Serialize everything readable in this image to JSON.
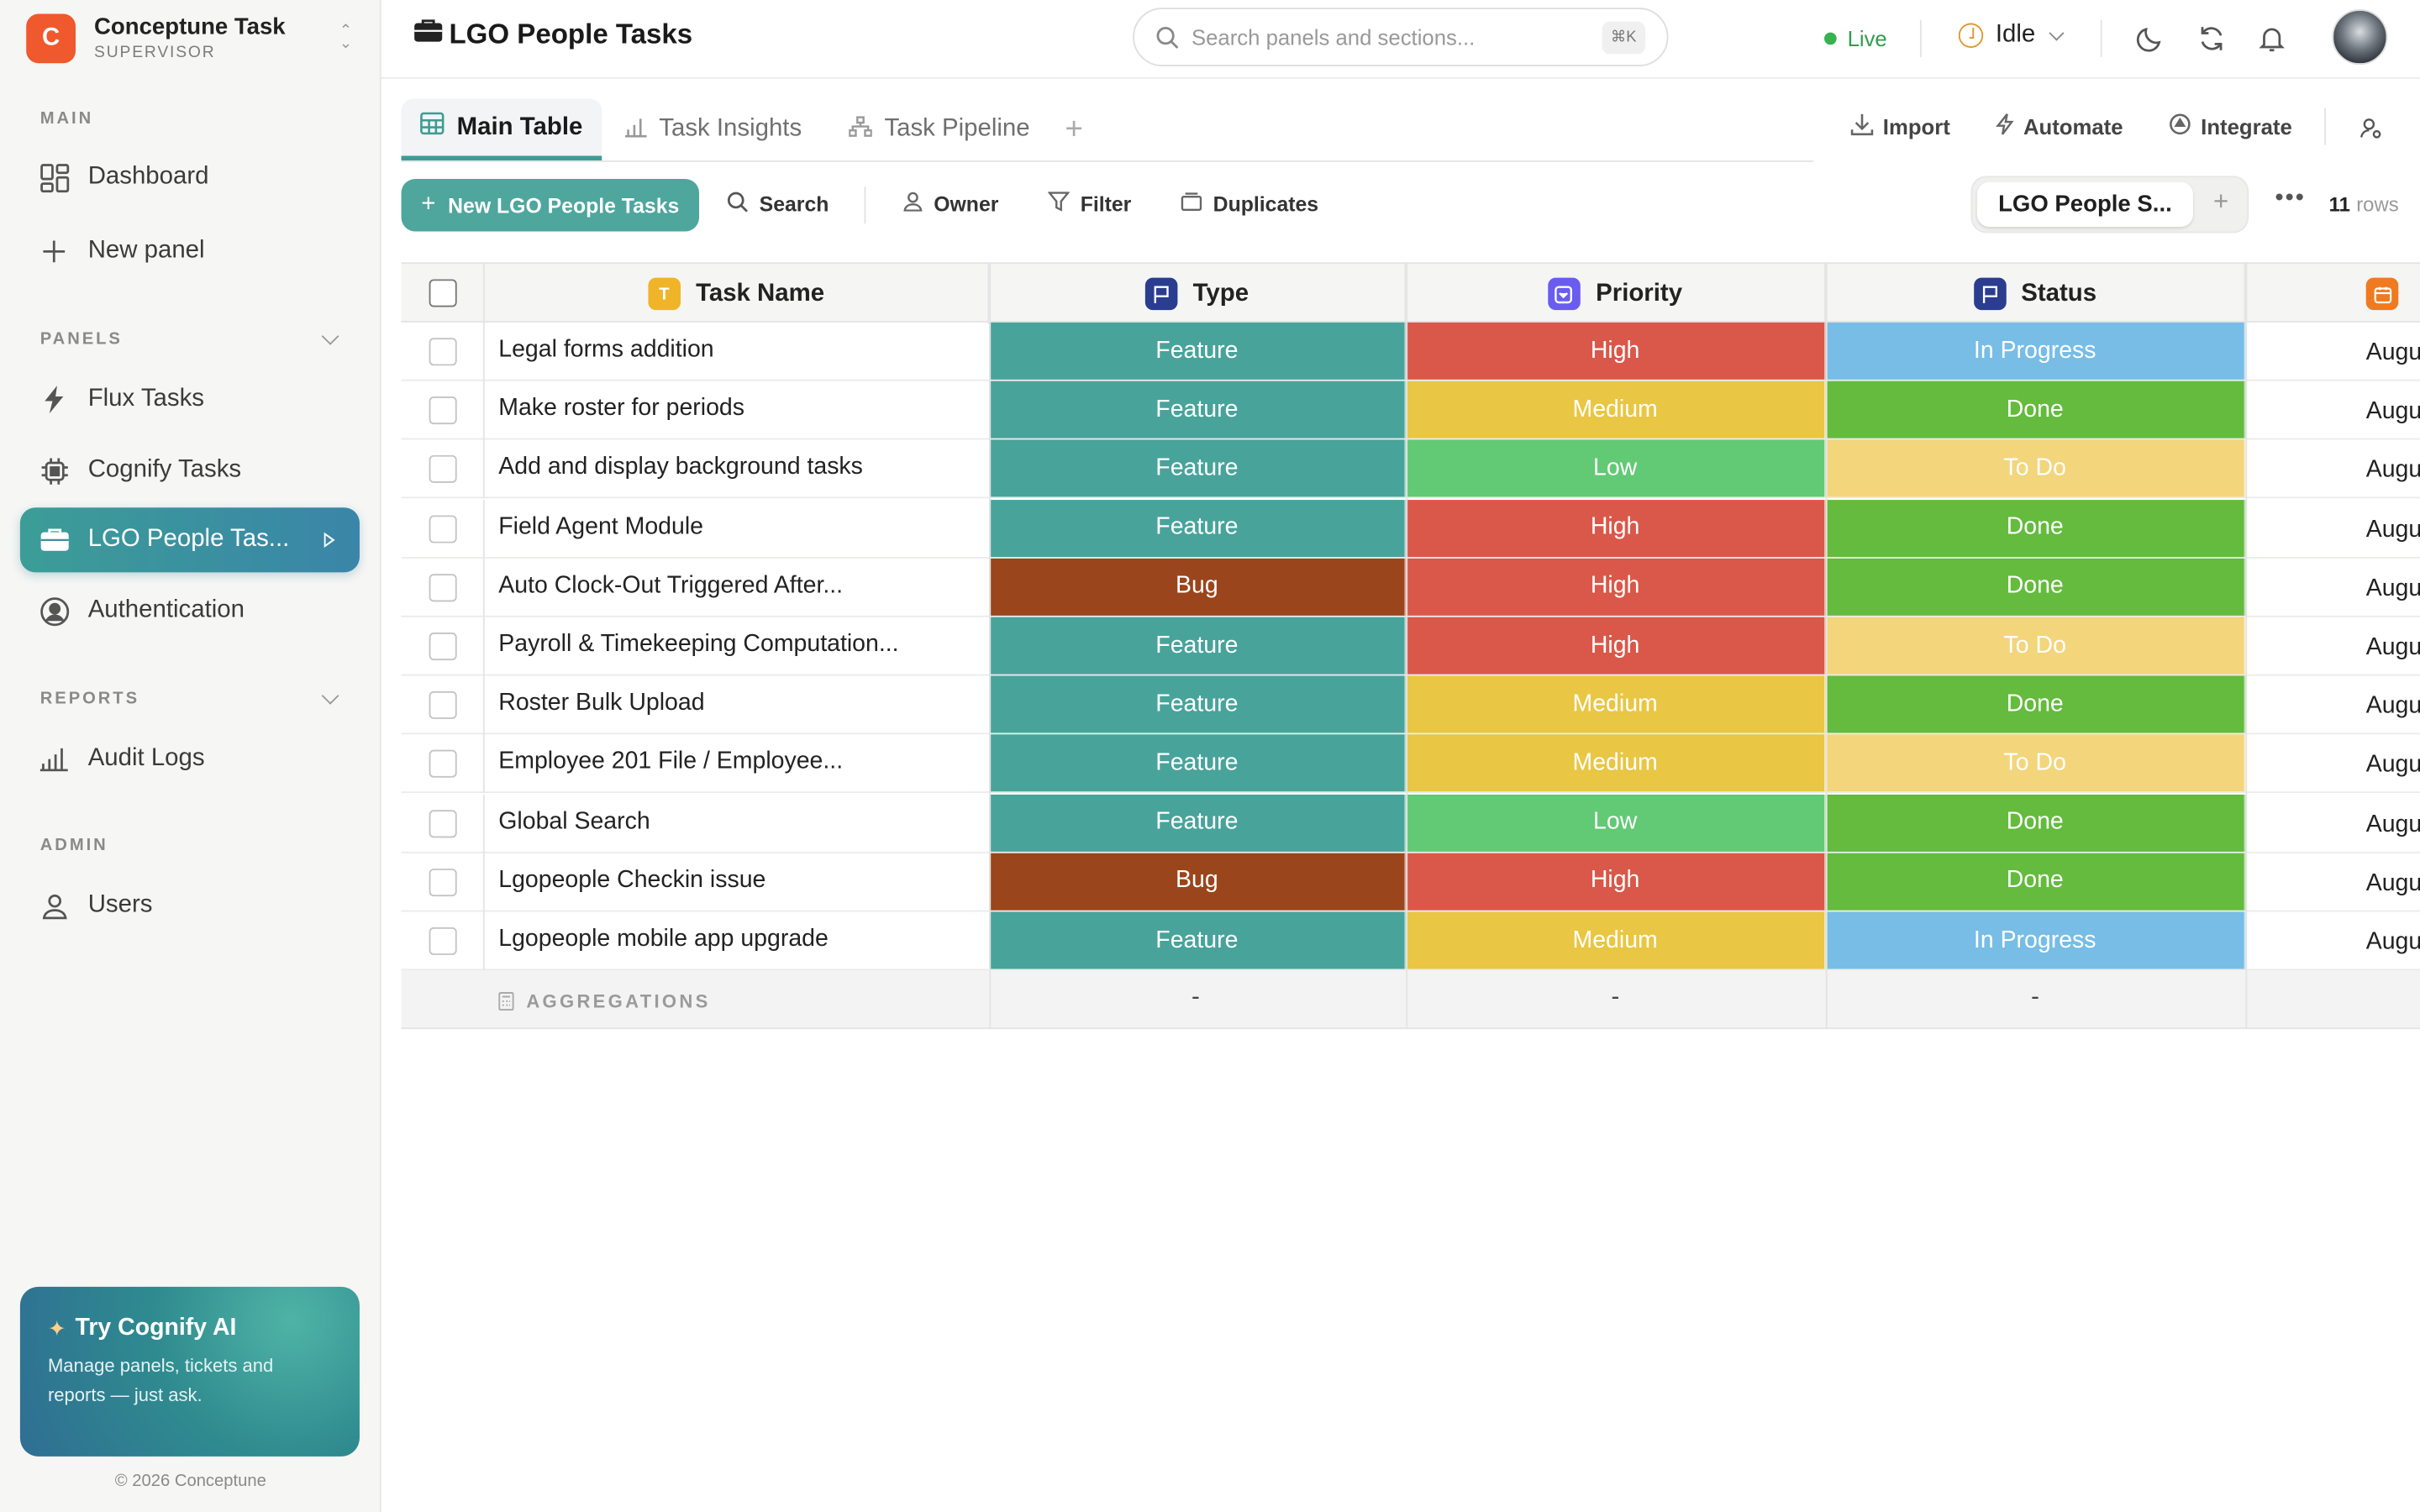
{
  "app": {
    "name": "Conceptune Task",
    "role": "SUPERVISOR",
    "logo_letter": "C"
  },
  "sidebar": {
    "sections": {
      "main": "MAIN",
      "panels": "PANELS",
      "reports": "REPORTS",
      "admin": "ADMIN"
    },
    "items": [
      {
        "label": "Dashboard",
        "icon": "dashboard-icon"
      },
      {
        "label": "New panel",
        "icon": "plus-icon"
      },
      {
        "label": "Flux Tasks",
        "icon": "bolt-icon"
      },
      {
        "label": "Cognify Tasks",
        "icon": "chip-icon"
      },
      {
        "label": "LGO People Tas...",
        "icon": "briefcase-icon",
        "active": true
      },
      {
        "label": "Authentication",
        "icon": "user-circle-icon"
      },
      {
        "label": "Audit Logs",
        "icon": "bar-chart-icon"
      },
      {
        "label": "Users",
        "icon": "user-icon"
      }
    ],
    "ai_card": {
      "title": "Try Cognify AI",
      "description": "Manage panels, tickets and reports — just ask."
    },
    "copyright": "© 2026 Conceptune"
  },
  "header": {
    "title": "LGO People Tasks",
    "search_placeholder": "Search panels and sections...",
    "search_shortcut": "⌘K",
    "live_label": "Live",
    "status": "Idle"
  },
  "tabs": [
    {
      "label": "Main Table",
      "icon": "table-icon"
    },
    {
      "label": "Task Insights",
      "icon": "bar-chart-icon"
    },
    {
      "label": "Task Pipeline",
      "icon": "pipeline-icon"
    }
  ],
  "tab_actions": {
    "import": "Import",
    "automate": "Automate",
    "integrate": "Integrate"
  },
  "toolbar": {
    "new_button": "New LGO People Tasks",
    "search": "Search",
    "owner": "Owner",
    "filter": "Filter",
    "duplicates": "Duplicates",
    "view_name": "LGO People S...",
    "row_count": "11",
    "row_suffix": "rows"
  },
  "table": {
    "columns": [
      "Task Name",
      "Type",
      "Priority",
      "Status"
    ],
    "column_icon_letter": "T",
    "date_prefix": "Augu",
    "rows": [
      {
        "name": "Legal forms addition",
        "type": "Feature",
        "priority": "High",
        "status": "In Progress"
      },
      {
        "name": "Make roster for periods",
        "type": "Feature",
        "priority": "Medium",
        "status": "Done"
      },
      {
        "name": "Add and display background tasks",
        "type": "Feature",
        "priority": "Low",
        "status": "To Do"
      },
      {
        "name": "Field Agent Module",
        "type": "Feature",
        "priority": "High",
        "status": "Done"
      },
      {
        "name": "Auto Clock-Out Triggered After...",
        "type": "Bug",
        "priority": "High",
        "status": "Done"
      },
      {
        "name": "Payroll & Timekeeping Computation...",
        "type": "Feature",
        "priority": "High",
        "status": "To Do"
      },
      {
        "name": "Roster Bulk Upload",
        "type": "Feature",
        "priority": "Medium",
        "status": "Done"
      },
      {
        "name": "Employee 201 File / Employee...",
        "type": "Feature",
        "priority": "Medium",
        "status": "To Do"
      },
      {
        "name": "Global Search",
        "type": "Feature",
        "priority": "Low",
        "status": "Done"
      },
      {
        "name": "Lgopeople Checkin issue",
        "type": "Bug",
        "priority": "High",
        "status": "Done"
      },
      {
        "name": "Lgopeople mobile app upgrade",
        "type": "Feature",
        "priority": "Medium",
        "status": "In Progress"
      }
    ],
    "aggregations_label": "AGGREGATIONS",
    "aggregation_values": [
      "-",
      "-",
      "-"
    ]
  },
  "colors": {
    "accent": "#3d9c95",
    "type": {
      "Feature": "#48a39b",
      "Bug": "#9a451b"
    },
    "priority": {
      "High": "#da5849",
      "Medium": "#e9c643",
      "Low": "#62c974"
    },
    "status": {
      "In Progress": "#77bde6",
      "Done": "#64bb3e",
      "To Do": "#f3d57c"
    }
  }
}
